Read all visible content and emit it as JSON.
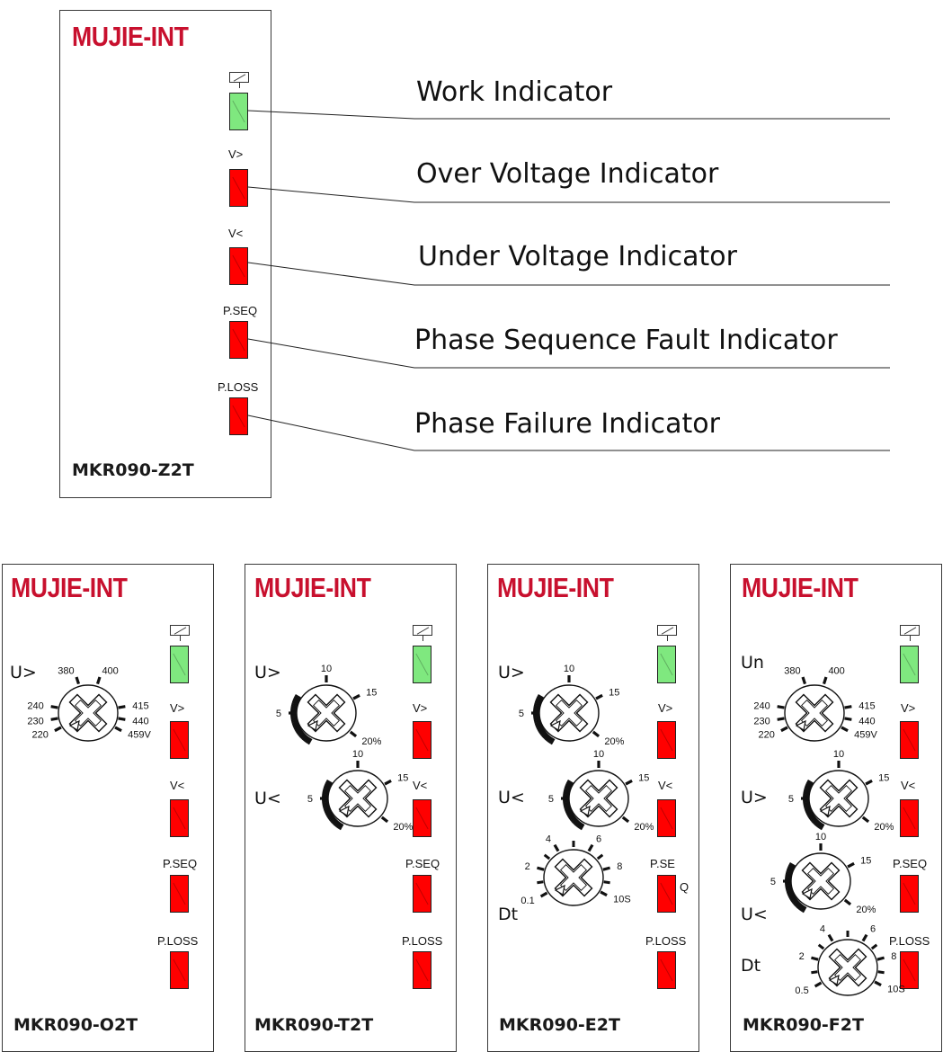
{
  "brand": "MUJIE-INT",
  "main_panel": {
    "model": "MKR090-Z2T",
    "leds": [
      {
        "label": "",
        "color": "green"
      },
      {
        "label": "V>",
        "color": "red"
      },
      {
        "label": "V<",
        "color": "red"
      },
      {
        "label": "P.SEQ",
        "color": "red"
      },
      {
        "label": "P.LOSS",
        "color": "red"
      }
    ],
    "callouts": [
      "Work Indicator",
      "Over Voltage Indicator",
      "Under Voltage Indicator",
      "Phase Sequence Fault Indicator",
      "Phase Failure Indicator"
    ]
  },
  "models": {
    "o2t": {
      "model": "MKR090-O2T",
      "knob_label": "U>",
      "scale": [
        "220",
        "230",
        "240",
        "380",
        "400",
        "415",
        "440",
        "459V"
      ],
      "leds": [
        "V>",
        "V<",
        "P.SEQ",
        "P.LOSS"
      ]
    },
    "t2t": {
      "model": "MKR090-T2T",
      "knob1_label": "U>",
      "knob2_label": "U<",
      "scale": [
        "5",
        "10",
        "15",
        "20%"
      ],
      "leds": [
        "V>",
        "V<",
        "P.SEQ",
        "P.LOSS"
      ]
    },
    "e2t": {
      "model": "MKR090-E2T",
      "knob1_label": "U>",
      "knob2_label": "U<",
      "knob3_label": "Dt",
      "scale": [
        "5",
        "10",
        "15",
        "20%"
      ],
      "time_scale": [
        "0.1",
        "2",
        "4",
        "6",
        "8",
        "10S"
      ],
      "leds": [
        "V>",
        "V<",
        "P.SE",
        "Q",
        "P.LOSS"
      ]
    },
    "f2t": {
      "model": "MKR090-F2T",
      "knob1_label": "Un",
      "knob2_label": "U>",
      "knob3_label": "U<",
      "knob4_label": "Dt",
      "scale_un": [
        "220",
        "230",
        "240",
        "380",
        "400",
        "415",
        "440",
        "459V"
      ],
      "scale": [
        "5",
        "10",
        "15",
        "20%"
      ],
      "time_scale": [
        "0.5",
        "2",
        "4",
        "6",
        "8",
        "10S"
      ],
      "leds": [
        "V>",
        "V<",
        "P.SEQ",
        "P.LOSS"
      ]
    }
  },
  "colors": {
    "brand": "#c8102e",
    "led_red": "#ff0000",
    "led_green": "#7fe87f"
  }
}
